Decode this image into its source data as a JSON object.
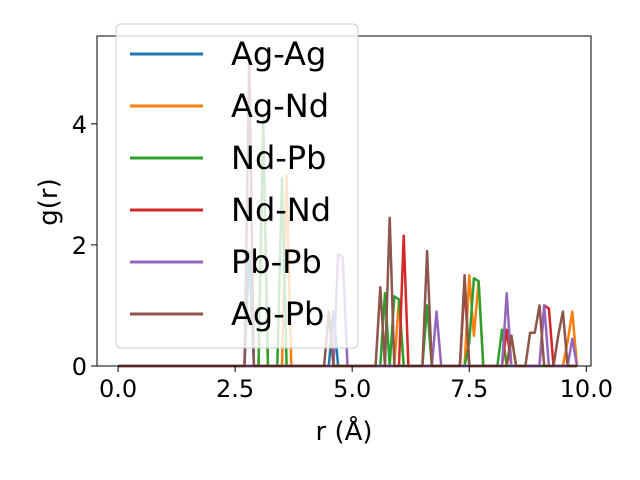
{
  "chart_data": {
    "type": "line",
    "xlabel": "r (Å)",
    "ylabel": "g(r)",
    "xlim": [
      -0.45,
      10.1
    ],
    "ylim": [
      0,
      5.45
    ],
    "x_ticks": [
      0.0,
      2.5,
      5.0,
      7.5,
      10.0
    ],
    "x_tick_labels": [
      "0.0",
      "2.5",
      "5.0",
      "7.5",
      "10.0"
    ],
    "y_ticks": [
      0,
      2,
      4
    ],
    "y_tick_labels": [
      "0",
      "2",
      "4"
    ],
    "grid": false,
    "legend_position": "upper left",
    "series": [
      {
        "name": "Ag-Ag",
        "color": "#1f77b4",
        "points": [
          [
            0,
            0
          ],
          [
            2.7,
            0
          ],
          [
            2.8,
            1.9
          ],
          [
            2.9,
            0
          ],
          [
            4.5,
            0
          ],
          [
            4.6,
            0.9
          ],
          [
            4.7,
            0
          ],
          [
            9.7,
            0
          ],
          [
            9.8,
            0
          ]
        ]
      },
      {
        "name": "Ag-Nd",
        "color": "#ff7f0e",
        "points": [
          [
            0,
            0
          ],
          [
            3.0,
            0
          ],
          [
            3.1,
            3.9
          ],
          [
            3.2,
            0
          ],
          [
            3.5,
            0
          ],
          [
            3.6,
            3.15
          ],
          [
            3.7,
            0
          ],
          [
            5.9,
            0
          ],
          [
            6.0,
            1.1
          ],
          [
            6.1,
            0
          ],
          [
            7.4,
            0
          ],
          [
            7.5,
            1.5
          ],
          [
            7.6,
            0.5
          ],
          [
            7.7,
            1.4
          ],
          [
            7.8,
            0
          ],
          [
            8.3,
            0
          ],
          [
            8.4,
            0.5
          ],
          [
            8.5,
            0
          ],
          [
            9.5,
            0
          ],
          [
            9.6,
            0.4
          ],
          [
            9.7,
            0.9
          ],
          [
            9.8,
            0
          ]
        ]
      },
      {
        "name": "Nd-Pb",
        "color": "#2ca02c",
        "points": [
          [
            0,
            0
          ],
          [
            3.0,
            0
          ],
          [
            3.1,
            4.1
          ],
          [
            3.2,
            0
          ],
          [
            3.4,
            0
          ],
          [
            3.5,
            3.1
          ],
          [
            3.6,
            0
          ],
          [
            5.6,
            0
          ],
          [
            5.7,
            1.2
          ],
          [
            5.8,
            0
          ],
          [
            5.9,
            1.15
          ],
          [
            6.0,
            1.1
          ],
          [
            6.1,
            0
          ],
          [
            6.5,
            0
          ],
          [
            6.6,
            1.0
          ],
          [
            6.7,
            0
          ],
          [
            7.4,
            0
          ],
          [
            7.5,
            0.4
          ],
          [
            7.6,
            1.45
          ],
          [
            7.7,
            1.4
          ],
          [
            7.8,
            0
          ],
          [
            8.1,
            0
          ],
          [
            8.2,
            0.6
          ],
          [
            8.3,
            0
          ],
          [
            9.7,
            0
          ],
          [
            9.8,
            0
          ]
        ]
      },
      {
        "name": "Nd-Nd",
        "color": "#d62728",
        "points": [
          [
            0,
            0
          ],
          [
            6.0,
            0
          ],
          [
            6.1,
            2.15
          ],
          [
            6.2,
            0
          ],
          [
            7.3,
            0
          ],
          [
            7.4,
            1.35
          ],
          [
            7.5,
            0
          ],
          [
            8.2,
            0
          ],
          [
            8.3,
            0.6
          ],
          [
            8.4,
            0
          ],
          [
            9.0,
            0
          ],
          [
            9.1,
            1.0
          ],
          [
            9.2,
            0.95
          ],
          [
            9.3,
            0
          ],
          [
            9.7,
            0
          ],
          [
            9.8,
            0
          ]
        ]
      },
      {
        "name": "Pb-Pb",
        "color": "#9467bd",
        "points": [
          [
            0,
            0
          ],
          [
            4.6,
            0
          ],
          [
            4.7,
            1.85
          ],
          [
            4.8,
            1.8
          ],
          [
            4.9,
            0
          ],
          [
            6.7,
            0
          ],
          [
            6.8,
            0.9
          ],
          [
            6.9,
            0
          ],
          [
            8.2,
            0
          ],
          [
            8.3,
            1.2
          ],
          [
            8.4,
            0
          ],
          [
            9.0,
            0
          ],
          [
            9.1,
            1.0
          ],
          [
            9.2,
            0
          ],
          [
            9.6,
            0
          ],
          [
            9.7,
            0.45
          ],
          [
            9.8,
            0
          ]
        ]
      },
      {
        "name": "Ag-Pb",
        "color": "#8c564b",
        "points": [
          [
            0,
            0
          ],
          [
            2.7,
            0
          ],
          [
            2.8,
            5.1
          ],
          [
            2.9,
            0
          ],
          [
            4.4,
            0
          ],
          [
            4.5,
            0.9
          ],
          [
            4.6,
            0
          ],
          [
            5.5,
            0
          ],
          [
            5.6,
            1.3
          ],
          [
            5.7,
            0
          ],
          [
            5.8,
            2.45
          ],
          [
            5.9,
            0
          ],
          [
            6.5,
            0
          ],
          [
            6.6,
            1.9
          ],
          [
            6.7,
            0
          ],
          [
            7.3,
            0
          ],
          [
            7.4,
            1.5
          ],
          [
            7.5,
            0
          ],
          [
            8.3,
            0
          ],
          [
            8.4,
            0.5
          ],
          [
            8.5,
            0
          ],
          [
            8.7,
            0
          ],
          [
            8.8,
            0.55
          ],
          [
            8.9,
            0.55
          ],
          [
            9.0,
            1.0
          ],
          [
            9.1,
            0
          ],
          [
            9.3,
            0
          ],
          [
            9.4,
            0.5
          ],
          [
            9.5,
            0.9
          ],
          [
            9.6,
            0
          ],
          [
            9.7,
            0
          ],
          [
            9.8,
            0
          ]
        ]
      }
    ]
  }
}
